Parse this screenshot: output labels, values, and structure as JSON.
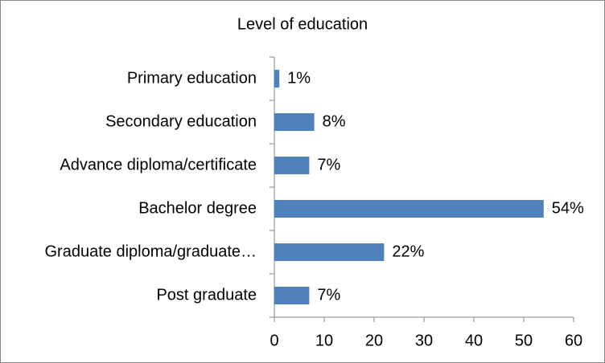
{
  "chart_data": {
    "type": "bar",
    "orientation": "horizontal",
    "title": "Level of education",
    "categories": [
      "Primary education",
      "Secondary education",
      "Advance diploma/certificate",
      "Bachelor degree",
      "Graduate diploma/graduate…",
      "Post graduate"
    ],
    "values": [
      1,
      8,
      7,
      54,
      22,
      7
    ],
    "value_labels": [
      "1%",
      "8%",
      "7%",
      "54%",
      "22%",
      "7%"
    ],
    "color": "#4f81bd",
    "xlim": [
      0,
      60
    ],
    "xticks": [
      0,
      10,
      20,
      30,
      40,
      50,
      60
    ],
    "grid": false
  }
}
